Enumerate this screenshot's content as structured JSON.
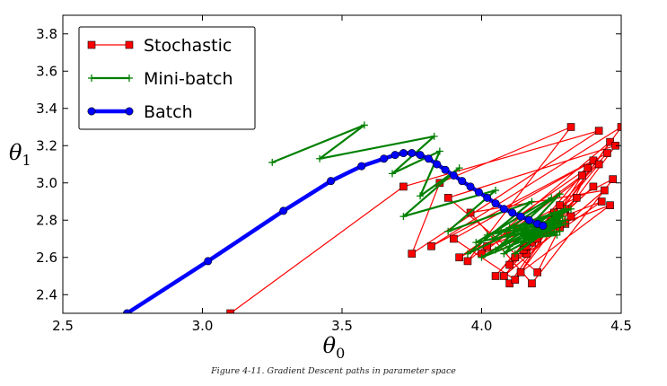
{
  "chart_data": {
    "type": "line",
    "xlabel": "θ",
    "xlabel_sub": "0",
    "ylabel": "θ",
    "ylabel_sub": "1",
    "xlim": [
      2.5,
      4.5
    ],
    "ylim": [
      2.3,
      3.9
    ],
    "x_ticks": [
      "2.5",
      "3.0",
      "3.5",
      "4.0",
      "4.5"
    ],
    "y_ticks": [
      "2.4",
      "2.6",
      "2.8",
      "3.0",
      "3.2",
      "3.4",
      "3.6",
      "3.8"
    ],
    "grid": false,
    "legend_position": "top-left",
    "series": [
      {
        "name": "Stochastic",
        "color": "#ff0000",
        "marker": "square",
        "x": [
          3.1,
          3.72,
          4.42,
          3.75,
          3.85,
          4.32,
          3.95,
          4.46,
          4.1,
          4.5,
          3.82,
          4.4,
          4.2,
          3.88,
          4.48,
          4.12,
          3.9,
          4.45,
          4.05,
          4.38,
          3.92,
          4.47,
          4.18,
          3.96,
          4.44,
          4.08,
          4.42,
          4.0,
          4.46,
          4.14,
          4.36,
          4.02,
          4.43,
          4.1,
          4.4,
          4.12,
          4.34,
          4.16,
          4.3,
          4.15,
          4.32,
          4.18,
          4.28,
          4.16,
          4.3,
          4.2,
          4.26,
          4.18,
          4.28,
          4.22,
          4.25,
          4.2,
          4.27,
          4.22,
          4.24
        ],
        "y": [
          2.3,
          2.98,
          3.28,
          2.62,
          3.0,
          3.3,
          2.58,
          3.22,
          2.46,
          3.3,
          2.66,
          3.12,
          2.52,
          2.92,
          3.2,
          2.48,
          2.7,
          3.16,
          2.5,
          3.08,
          2.6,
          3.02,
          2.46,
          2.84,
          2.96,
          2.5,
          3.1,
          2.62,
          2.88,
          2.52,
          3.04,
          2.66,
          2.9,
          2.56,
          2.98,
          2.6,
          2.92,
          2.62,
          2.86,
          2.64,
          2.82,
          2.68,
          2.88,
          2.66,
          2.78,
          2.7,
          2.84,
          2.72,
          2.76,
          2.74,
          2.8,
          2.74,
          2.78,
          2.76,
          2.77
        ]
      },
      {
        "name": "Mini-batch",
        "color": "#008000",
        "marker": "plus",
        "x": [
          3.25,
          3.58,
          3.42,
          3.83,
          3.68,
          3.85,
          3.78,
          3.92,
          3.72,
          4.05,
          3.88,
          4.18,
          3.95,
          4.26,
          4.0,
          4.3,
          3.98,
          4.25,
          4.05,
          4.32,
          4.02,
          4.3,
          4.08,
          4.28,
          4.04,
          4.26,
          4.1,
          4.3,
          4.07,
          4.27,
          4.12,
          4.29,
          4.09,
          4.28,
          4.14,
          4.26,
          4.1,
          4.27,
          4.15,
          4.25,
          4.13,
          4.26,
          4.18,
          4.24,
          4.16,
          4.23,
          4.2,
          4.22
        ],
        "y": [
          3.11,
          3.31,
          3.13,
          3.25,
          3.05,
          3.17,
          2.93,
          3.08,
          2.82,
          2.96,
          2.74,
          2.9,
          2.62,
          2.84,
          2.6,
          2.78,
          2.68,
          2.92,
          2.64,
          2.86,
          2.72,
          2.8,
          2.62,
          2.94,
          2.7,
          2.76,
          2.66,
          2.86,
          2.74,
          2.78,
          2.62,
          2.82,
          2.72,
          2.74,
          2.68,
          2.8,
          2.76,
          2.72,
          2.7,
          2.8,
          2.74,
          2.76,
          2.72,
          2.78,
          2.74,
          2.76,
          2.75,
          2.77
        ]
      },
      {
        "name": "Batch",
        "color": "#0000ff",
        "marker": "circle",
        "x": [
          2.73,
          3.02,
          3.29,
          3.46,
          3.57,
          3.65,
          3.69,
          3.72,
          3.75,
          3.78,
          3.81,
          3.84,
          3.87,
          3.9,
          3.93,
          3.96,
          3.99,
          4.02,
          4.05,
          4.08,
          4.11,
          4.14,
          4.17,
          4.2,
          4.22
        ],
        "y": [
          2.3,
          2.58,
          2.85,
          3.01,
          3.09,
          3.13,
          3.15,
          3.16,
          3.16,
          3.15,
          3.13,
          3.1,
          3.07,
          3.04,
          3.01,
          2.98,
          2.95,
          2.92,
          2.89,
          2.86,
          2.84,
          2.82,
          2.8,
          2.78,
          2.77
        ]
      }
    ]
  },
  "caption": "Figure 4-11. Gradient Descent paths in parameter space"
}
